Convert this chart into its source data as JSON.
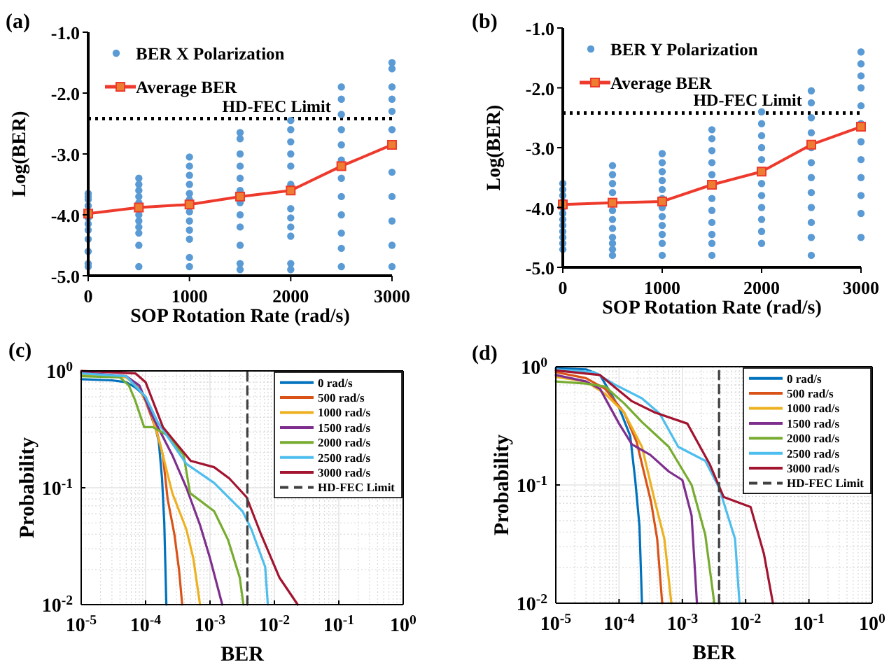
{
  "chart_data": [
    {
      "type": "scatter",
      "title": "(a)",
      "xlabel": "SOP Rotation Rate (rad/s)",
      "ylabel": "Log(BER)",
      "xlim": [
        0,
        3000
      ],
      "ylim": [
        -5,
        -1
      ],
      "xticks": [
        0,
        1000,
        2000,
        3000
      ],
      "yticks": [
        {
          "value": -5,
          "label": "-5.0"
        },
        {
          "value": -4,
          "label": "-4.0"
        },
        {
          "value": -3,
          "label": "-3.0"
        },
        {
          "value": -2,
          "label": "-2.0"
        },
        {
          "value": -1,
          "label": "-1.0"
        }
      ],
      "legend": "top left",
      "ref_lines": [
        {
          "axis": "y",
          "value": -2.42,
          "label": "HD-FEC Limit",
          "color": "#000000",
          "line_style": "dotted"
        }
      ],
      "series": [
        {
          "name": "BER X Polarization",
          "type": "scatter",
          "marker": "circle",
          "color": "#5b9bd5",
          "x": [
            0,
            0,
            0,
            0,
            0,
            0,
            0,
            0,
            0,
            0,
            0,
            500,
            500,
            500,
            500,
            500,
            500,
            500,
            500,
            500,
            500,
            500,
            1000,
            1000,
            1000,
            1000,
            1000,
            1000,
            1000,
            1000,
            1000,
            1000,
            1000,
            1000,
            1500,
            1500,
            1500,
            1500,
            1500,
            1500,
            1500,
            1500,
            1500,
            1500,
            1500,
            1500,
            2000,
            2000,
            2000,
            2000,
            2000,
            2000,
            2000,
            2000,
            2000,
            2000,
            2000,
            2000,
            2500,
            2500,
            2500,
            2500,
            2500,
            2500,
            2500,
            2500,
            2500,
            2500,
            2500,
            2500,
            3000,
            3000,
            3000,
            3000,
            3000,
            3000,
            3000,
            3000,
            3000,
            3000,
            3000
          ],
          "values": [
            -3.65,
            -3.7,
            -3.75,
            -3.85,
            -4.05,
            -4.15,
            -4.25,
            -4.4,
            -4.6,
            -4.8,
            -4.85,
            -3.4,
            -3.5,
            -3.6,
            -3.7,
            -3.8,
            -4.0,
            -4.1,
            -4.2,
            -4.3,
            -4.5,
            -4.85,
            -3.05,
            -3.2,
            -3.35,
            -3.5,
            -3.65,
            -3.75,
            -3.95,
            -4.1,
            -4.25,
            -4.4,
            -4.7,
            -4.85,
            -2.65,
            -2.75,
            -3.0,
            -3.2,
            -3.4,
            -3.6,
            -3.8,
            -4.0,
            -4.2,
            -4.5,
            -4.8,
            -4.9,
            -2.45,
            -2.6,
            -2.8,
            -3.0,
            -3.2,
            -3.5,
            -3.9,
            -4.05,
            -4.2,
            -4.35,
            -4.8,
            -4.9,
            -1.9,
            -2.1,
            -2.35,
            -2.6,
            -2.85,
            -3.1,
            -3.4,
            -3.7,
            -4.0,
            -4.3,
            -4.55,
            -4.85,
            -1.5,
            -1.6,
            -1.9,
            -2.1,
            -2.3,
            -2.6,
            -3.3,
            -3.7,
            -4.1,
            -4.5,
            -4.85
          ]
        },
        {
          "name": "Average BER",
          "type": "line",
          "marker": "square",
          "color": "#ee3a2c",
          "x": [
            0,
            500,
            1000,
            1500,
            2000,
            2500,
            3000
          ],
          "values": [
            -3.98,
            -3.88,
            -3.83,
            -3.7,
            -3.6,
            -3.2,
            -2.85
          ]
        }
      ]
    },
    {
      "type": "scatter",
      "title": "(b)",
      "xlabel": "SOP Rotation Rate (rad/s)",
      "ylabel": "Log(BER)",
      "xlim": [
        0,
        3000
      ],
      "ylim": [
        -5,
        -1
      ],
      "xticks": [
        0,
        1000,
        2000,
        3000
      ],
      "yticks": [
        {
          "value": -5,
          "label": "-5.0"
        },
        {
          "value": -4,
          "label": "-4.0"
        },
        {
          "value": -3,
          "label": "-3.0"
        },
        {
          "value": -2,
          "label": "-2.0"
        },
        {
          "value": -1,
          "label": "-1.0"
        }
      ],
      "legend": "top left",
      "ref_lines": [
        {
          "axis": "y",
          "value": -2.42,
          "label": "HD-FEC Limit",
          "color": "#000000",
          "line_style": "dotted"
        }
      ],
      "series": [
        {
          "name": "BER Y Polarization",
          "type": "scatter",
          "marker": "circle",
          "color": "#5b9bd5",
          "x": [
            0,
            0,
            0,
            0,
            0,
            0,
            0,
            0,
            0,
            0,
            0,
            0,
            500,
            500,
            500,
            500,
            500,
            500,
            500,
            500,
            500,
            500,
            500,
            1000,
            1000,
            1000,
            1000,
            1000,
            1000,
            1000,
            1000,
            1000,
            1000,
            1000,
            1000,
            1500,
            1500,
            1500,
            1500,
            1500,
            1500,
            1500,
            1500,
            1500,
            1500,
            1500,
            2000,
            2000,
            2000,
            2000,
            2000,
            2000,
            2000,
            2000,
            2000,
            2000,
            2000,
            2500,
            2500,
            2500,
            2500,
            2500,
            2500,
            2500,
            2500,
            2500,
            2500,
            2500,
            2500,
            3000,
            3000,
            3000,
            3000,
            3000,
            3000,
            3000,
            3000,
            3000,
            3000,
            3000,
            3000
          ],
          "values": [
            -3.6,
            -3.7,
            -3.8,
            -3.9,
            -4.0,
            -4.1,
            -4.2,
            -4.3,
            -4.4,
            -4.5,
            -4.6,
            -4.7,
            -3.3,
            -3.45,
            -3.6,
            -3.75,
            -4.05,
            -4.2,
            -4.35,
            -4.5,
            -4.6,
            -4.7,
            -4.8,
            -3.1,
            -3.25,
            -3.4,
            -3.55,
            -3.7,
            -3.85,
            -4.0,
            -4.15,
            -4.3,
            -4.45,
            -4.6,
            -4.8,
            -2.7,
            -2.85,
            -3.05,
            -3.25,
            -3.45,
            -3.85,
            -4.05,
            -4.25,
            -4.45,
            -4.6,
            -4.8,
            -2.4,
            -2.6,
            -2.8,
            -3.0,
            -3.2,
            -3.6,
            -3.8,
            -4.0,
            -4.2,
            -4.4,
            -4.6,
            -2.05,
            -2.25,
            -2.5,
            -2.75,
            -3.0,
            -3.25,
            -3.5,
            -3.75,
            -4.0,
            -4.25,
            -4.5,
            -4.8,
            -1.4,
            -1.6,
            -1.8,
            -2.0,
            -2.3,
            -2.6,
            -2.9,
            -3.2,
            -3.5,
            -3.8,
            -4.1,
            -4.5
          ]
        },
        {
          "name": "Average BER",
          "type": "line",
          "marker": "square",
          "color": "#ee3a2c",
          "x": [
            0,
            500,
            1000,
            1500,
            2000,
            2500,
            3000
          ],
          "values": [
            -3.95,
            -3.92,
            -3.9,
            -3.62,
            -3.4,
            -2.95,
            -2.65
          ]
        }
      ]
    },
    {
      "type": "line",
      "title": "(c)",
      "xlabel": "BER",
      "ylabel": "Probability",
      "log": "xy",
      "grid": true,
      "legend": "top right",
      "xlim": [
        1e-05,
        1
      ],
      "ylim": [
        0.01,
        1
      ],
      "xticks": [
        {
          "value": 1e-05,
          "label": "10$^{-5}$"
        },
        {
          "value": 0.0001,
          "label": "10$^{-4}$"
        },
        {
          "value": 0.001,
          "label": "10$^{-3}$"
        },
        {
          "value": 0.01,
          "label": "10$^{-2}$"
        },
        {
          "value": 0.1,
          "label": "10$^{-1}$"
        },
        {
          "value": 1,
          "label": "10$^{0}$"
        }
      ],
      "yticks": [
        {
          "value": 0.01,
          "label": "10$^{-2}$"
        },
        {
          "value": 0.1,
          "label": "10$^{-1}$"
        },
        {
          "value": 1,
          "label": "10$^{0}$"
        }
      ],
      "series": [
        {
          "name": "0 rad/s",
          "color": "#0072bd",
          "x": [
            1e-05,
            3e-05,
            5e-05,
            7e-05,
            0.0001,
            0.00013,
            0.00016,
            0.00018,
            0.000195,
            0.00021
          ],
          "values": [
            0.85,
            0.83,
            0.8,
            0.72,
            0.6,
            0.4,
            0.25,
            0.12,
            0.05,
            0.01
          ]
        },
        {
          "name": "500 rad/s",
          "color": "#d95319",
          "x": [
            1e-05,
            5e-05,
            8e-05,
            0.0001,
            0.00015,
            0.000185,
            0.00022,
            0.00028,
            0.00033,
            0.00037
          ],
          "values": [
            0.95,
            0.9,
            0.7,
            0.55,
            0.3,
            0.19,
            0.08,
            0.04,
            0.02,
            0.01
          ]
        },
        {
          "name": "1000 rad/s",
          "color": "#edb120",
          "x": [
            1e-05,
            5e-05,
            8e-05,
            0.00012,
            0.00017,
            0.00026,
            0.00043,
            0.00055,
            0.0007
          ],
          "values": [
            0.92,
            0.88,
            0.7,
            0.45,
            0.23,
            0.09,
            0.044,
            0.025,
            0.01
          ]
        },
        {
          "name": "1500 rad/s",
          "color": "#7e2f8e",
          "x": [
            1e-05,
            5e-05,
            8e-05,
            0.00013,
            0.00026,
            0.00043,
            0.0007,
            0.001,
            0.00155
          ],
          "values": [
            0.97,
            0.9,
            0.75,
            0.4,
            0.19,
            0.1,
            0.048,
            0.025,
            0.01
          ]
        },
        {
          "name": "2000 rad/s",
          "color": "#77ac30",
          "x": [
            1e-05,
            4e-05,
            5.5e-05,
            6.8e-05,
            9.5e-05,
            0.00013,
            0.00022,
            0.00039,
            0.00049,
            0.00116,
            0.0019,
            0.0029,
            0.0033
          ],
          "values": [
            0.9,
            0.88,
            0.75,
            0.57,
            0.33,
            0.33,
            0.28,
            0.19,
            0.09,
            0.063,
            0.036,
            0.017,
            0.01
          ]
        },
        {
          "name": "2500 rad/s",
          "color": "#4dbeee",
          "x": [
            1e-05,
            5e-05,
            0.0001,
            0.000156,
            0.00043,
            0.00116,
            0.0032,
            0.0044,
            0.0072,
            0.0079
          ],
          "values": [
            0.95,
            0.9,
            0.6,
            0.36,
            0.16,
            0.11,
            0.063,
            0.044,
            0.021,
            0.01
          ]
        },
        {
          "name": "3000 rad/s",
          "color": "#a2142f",
          "x": [
            1e-05,
            7e-05,
            0.0001,
            0.00013,
            0.000186,
            0.0005,
            0.00116,
            0.002,
            0.0037,
            0.0062,
            0.012,
            0.023
          ],
          "values": [
            1.0,
            0.95,
            0.8,
            0.55,
            0.33,
            0.17,
            0.15,
            0.12,
            0.083,
            0.04,
            0.017,
            0.01
          ]
        },
        {
          "name": "HD-FEC Limit",
          "color": "#404040",
          "line_style": "dashed",
          "x": [
            0.0038,
            0.0038
          ],
          "values": [
            0.01,
            1
          ]
        }
      ]
    },
    {
      "type": "line",
      "title": "(d)",
      "xlabel": "BER",
      "ylabel": "Probability",
      "log": "xy",
      "grid": true,
      "legend": "top right",
      "xlim": [
        1e-05,
        1
      ],
      "ylim": [
        0.01,
        1
      ],
      "xticks": [
        {
          "value": 1e-05,
          "label": "10$^{-5}$"
        },
        {
          "value": 0.0001,
          "label": "10$^{-4}$"
        },
        {
          "value": 0.001,
          "label": "10$^{-3}$"
        },
        {
          "value": 0.01,
          "label": "10$^{-2}$"
        },
        {
          "value": 0.1,
          "label": "10$^{-1}$"
        },
        {
          "value": 1,
          "label": "10$^{0}$"
        }
      ],
      "yticks": [
        {
          "value": 0.01,
          "label": "10$^{-2}$"
        },
        {
          "value": 0.1,
          "label": "10$^{-1}$"
        },
        {
          "value": 1,
          "label": "10$^{0}$"
        }
      ],
      "series": [
        {
          "name": "0 rad/s",
          "color": "#0072bd",
          "x": [
            1e-05,
            3e-05,
            5e-05,
            0.0001,
            0.00015,
            0.00018,
            0.00021,
            0.00023
          ],
          "values": [
            0.97,
            0.95,
            0.85,
            0.45,
            0.26,
            0.11,
            0.045,
            0.01
          ]
        },
        {
          "name": "500 rad/s",
          "color": "#d95319",
          "x": [
            1e-05,
            3e-05,
            6e-05,
            0.00012,
            0.00019,
            0.00032,
            0.0004,
            0.00048
          ],
          "values": [
            0.9,
            0.8,
            0.65,
            0.41,
            0.23,
            0.072,
            0.035,
            0.01
          ]
        },
        {
          "name": "1000 rad/s",
          "color": "#edb120",
          "x": [
            1e-05,
            3e-05,
            6e-05,
            0.00012,
            0.00023,
            0.00037,
            0.00052,
            0.00067
          ],
          "values": [
            0.82,
            0.75,
            0.59,
            0.41,
            0.21,
            0.072,
            0.035,
            0.01
          ]
        },
        {
          "name": "1500 rad/s",
          "color": "#7e2f8e",
          "x": [
            1e-05,
            3e-05,
            5e-05,
            0.0001,
            0.00016,
            0.00031,
            0.00061,
            0.001,
            0.0014,
            0.0017
          ],
          "values": [
            0.85,
            0.75,
            0.65,
            0.33,
            0.22,
            0.18,
            0.13,
            0.11,
            0.055,
            0.01
          ]
        },
        {
          "name": "2000 rad/s",
          "color": "#77ac30",
          "x": [
            1e-05,
            3e-05,
            6e-05,
            0.00012,
            0.00023,
            0.00061,
            0.0014,
            0.0023,
            0.0032
          ],
          "values": [
            0.75,
            0.72,
            0.68,
            0.49,
            0.34,
            0.21,
            0.1,
            0.038,
            0.01
          ]
        },
        {
          "name": "2500 rad/s",
          "color": "#4dbeee",
          "x": [
            1e-05,
            4e-05,
            8.4e-05,
            0.00023,
            0.00044,
            0.00086,
            0.0023,
            0.0038,
            0.0068,
            0.008
          ],
          "values": [
            0.95,
            0.9,
            0.71,
            0.54,
            0.4,
            0.21,
            0.16,
            0.095,
            0.035,
            0.01
          ]
        },
        {
          "name": "3000 rad/s",
          "color": "#a2142f",
          "x": [
            1e-05,
            5e-05,
            0.00016,
            0.00037,
            0.0012,
            0.0027,
            0.0045,
            0.012,
            0.0195,
            0.027
          ],
          "values": [
            0.93,
            0.85,
            0.51,
            0.41,
            0.33,
            0.15,
            0.079,
            0.065,
            0.026,
            0.01
          ]
        },
        {
          "name": "HD-FEC Limit",
          "color": "#404040",
          "line_style": "dashed",
          "x": [
            0.0038,
            0.0038
          ],
          "values": [
            0.01,
            1
          ]
        }
      ]
    }
  ]
}
